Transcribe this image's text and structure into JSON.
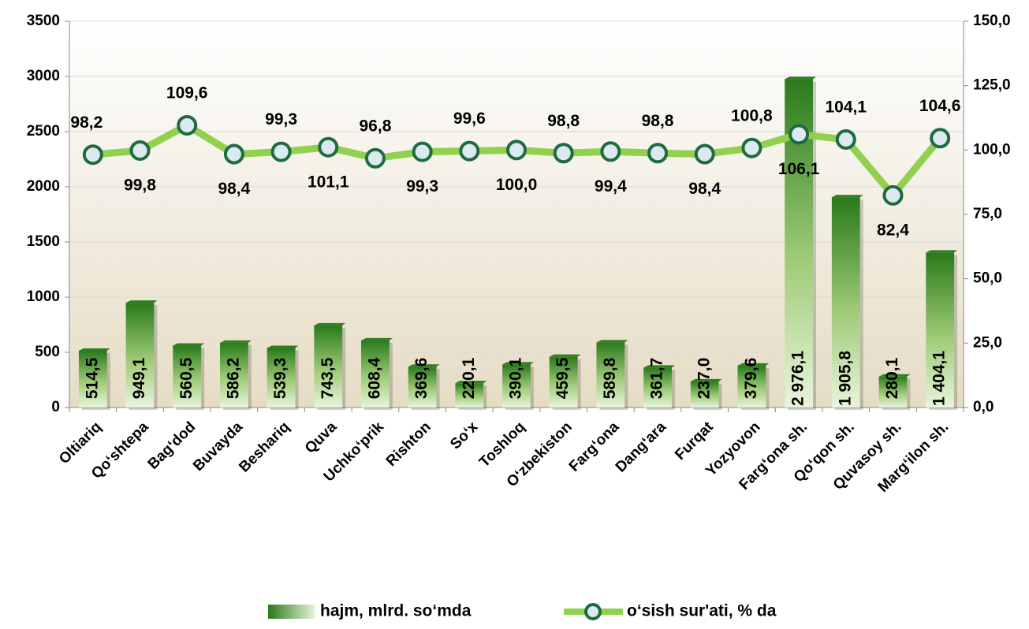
{
  "chart_data": {
    "type": "combo",
    "categories": [
      "Oltiariq",
      "Qo‘shtepa",
      "Bag‘dod",
      "Buvayda",
      "Beshariq",
      "Quva",
      "Uchko‘prik",
      "Rishton",
      "So‘x",
      "Toshloq",
      "O‘zbekiston",
      "Farg‘ona",
      "Dang‘ara",
      "Furqat",
      "Yozyovon",
      "Farg‘ona sh.",
      "Qo‘qon sh.",
      "Quvasoy sh.",
      "Marg‘ilon sh."
    ],
    "series": [
      {
        "name": "hajm, mlrd. so‘mda",
        "type": "bar",
        "color": "#2f7d1f",
        "values": [
          514.5,
          949.1,
          560.5,
          586.2,
          539.3,
          743.5,
          608.4,
          369.6,
          220.1,
          390.1,
          459.5,
          589.8,
          361.7,
          237.0,
          379.6,
          2976.1,
          1905.8,
          280.1,
          1404.1
        ],
        "value_labels": [
          "514,5",
          "949,1",
          "560,5",
          "586,2",
          "539,3",
          "743,5",
          "608,4",
          "369,6",
          "220,1",
          "390,1",
          "459,5",
          "589,8",
          "361,7",
          "237,0",
          "379,6",
          "2 976,1",
          "1 905,8",
          "280,1",
          "1 404,1"
        ]
      },
      {
        "name": "o‘sish sur'ati, % da",
        "type": "line",
        "axis": "y2",
        "color": "#92d050",
        "values": [
          98.2,
          99.8,
          109.6,
          98.4,
          99.3,
          101.1,
          96.8,
          99.3,
          99.6,
          100.0,
          98.8,
          99.4,
          98.8,
          98.4,
          100.8,
          106.1,
          104.1,
          82.4,
          104.6
        ],
        "value_labels": [
          "98,2",
          "99,8",
          "109,6",
          "98,4",
          "99,3",
          "101,1",
          "96,8",
          "99,3",
          "99,6",
          "100,0",
          "98,8",
          "99,4",
          "98,8",
          "98,4",
          "100,8",
          "106,1",
          "104,1",
          "82,4",
          "104,6"
        ]
      }
    ],
    "ylim": [
      0,
      3500
    ],
    "yticks": [
      0,
      500,
      1000,
      1500,
      2000,
      2500,
      3000,
      3500
    ],
    "y2lim": [
      0,
      150
    ],
    "y2ticks": [
      {
        "value": 0,
        "label": "0,0"
      },
      {
        "value": 25,
        "label": "25,0"
      },
      {
        "value": 50,
        "label": "50,0"
      },
      {
        "value": 75,
        "label": "75,0"
      },
      {
        "value": 100,
        "label": "100,0"
      },
      {
        "value": 125,
        "label": "125,0"
      },
      {
        "value": 150,
        "label": "150,0"
      }
    ],
    "grid": true,
    "legend": "bottom"
  }
}
